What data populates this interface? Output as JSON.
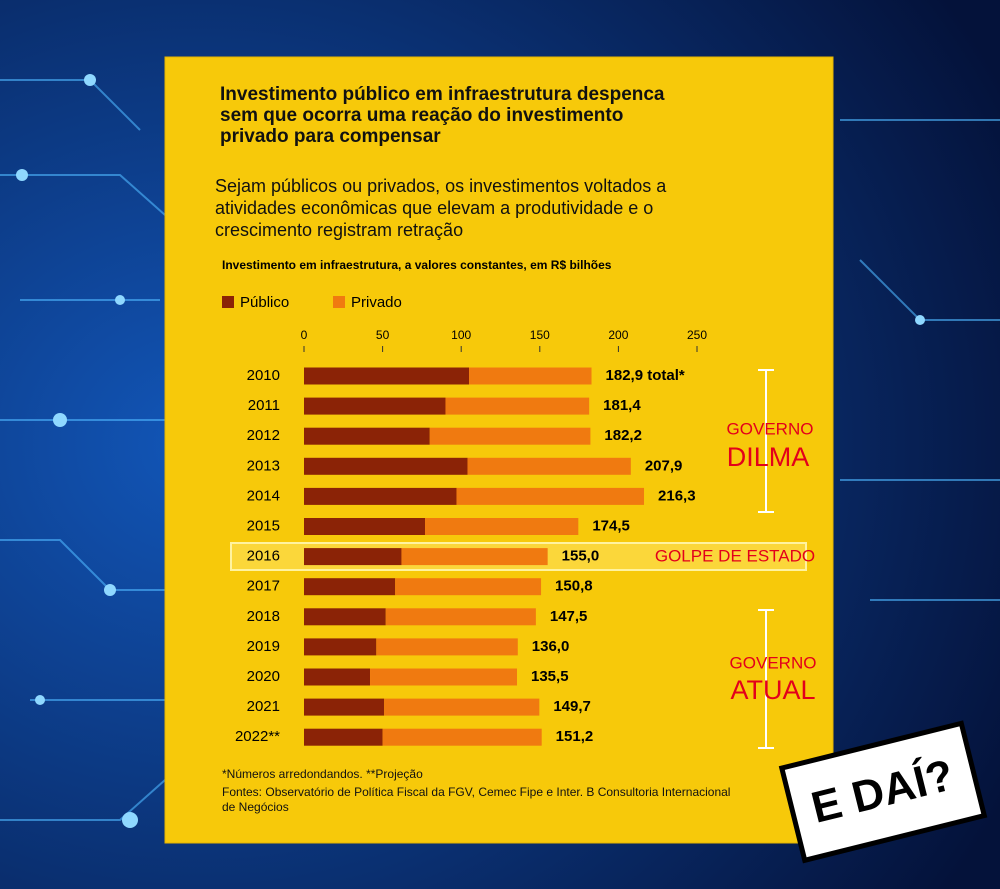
{
  "chart_data": {
    "type": "stacked-bar-horizontal",
    "title": "Investimento público em infraestrutura despenca sem que ocorra uma reação do investimento privado para compensar",
    "subtitle": "Sejam públicos ou privados, os investimentos voltados a atividades econômicas que elevam a produtividade e o crescimento registram retração",
    "axis_label": "Investimento em infraestrutura, a valores constantes, em R$ bilhões",
    "categories": [
      "2010",
      "2011",
      "2012",
      "2013",
      "2014",
      "2015",
      "2016",
      "2017",
      "2018",
      "2019",
      "2020",
      "2021",
      "2022**"
    ],
    "series": [
      {
        "name": "Público",
        "color": "#8b2306",
        "values": [
          105,
          90,
          80,
          104,
          97,
          77,
          62,
          58,
          52,
          46,
          42,
          51,
          50
        ]
      },
      {
        "name": "Privado",
        "color": "#f07a10",
        "values": [
          77.9,
          91.4,
          102.2,
          103.9,
          119.3,
          97.5,
          93,
          92.8,
          95.5,
          90,
          93.5,
          98.7,
          101.2
        ]
      }
    ],
    "totals": [
      182.9,
      181.4,
      182.2,
      207.9,
      216.3,
      174.5,
      155.0,
      150.8,
      147.5,
      136.0,
      135.5,
      149.7,
      151.2
    ],
    "value_labels": [
      "182,9 total*",
      "181,4",
      "182,2",
      "207,9",
      "216,3",
      "174,5",
      "155,0",
      "150,8",
      "147,5",
      "136,0",
      "135,5",
      "149,7",
      "151,2"
    ],
    "xlim": [
      0,
      250
    ],
    "xticks": [
      0,
      50,
      100,
      150,
      200,
      250
    ],
    "highlight_category": 6,
    "annotations": [
      "GOVERNO",
      "DILMA",
      "GOLPE DE ESTADO",
      "GOVERNO",
      "ATUAL"
    ],
    "notes": [
      "*Números arredondandos. **Projeção",
      "Fontes: Observatório de Política Fiscal da FGV, Cemec Fipe e Inter. B Consultoria Internacional de Negócios"
    ]
  },
  "sticker": "E DAÍ?"
}
